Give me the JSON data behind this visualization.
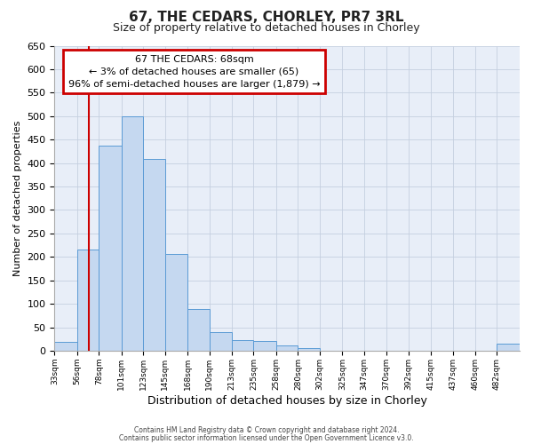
{
  "title": "67, THE CEDARS, CHORLEY, PR7 3RL",
  "subtitle": "Size of property relative to detached houses in Chorley",
  "xlabel": "Distribution of detached houses by size in Chorley",
  "ylabel": "Number of detached properties",
  "bin_labels": [
    "33sqm",
    "56sqm",
    "78sqm",
    "101sqm",
    "123sqm",
    "145sqm",
    "168sqm",
    "190sqm",
    "213sqm",
    "235sqm",
    "258sqm",
    "280sqm",
    "302sqm",
    "325sqm",
    "347sqm",
    "370sqm",
    "392sqm",
    "415sqm",
    "437sqm",
    "460sqm",
    "482sqm"
  ],
  "bar_values": [
    18,
    215,
    438,
    500,
    408,
    207,
    88,
    40,
    22,
    20,
    12,
    5,
    0,
    0,
    0,
    0,
    0,
    0,
    0,
    0,
    15
  ],
  "bar_color": "#c5d8f0",
  "bar_edge_color": "#5b9bd5",
  "ylim": [
    0,
    650
  ],
  "yticks": [
    0,
    50,
    100,
    150,
    200,
    250,
    300,
    350,
    400,
    450,
    500,
    550,
    600,
    650
  ],
  "red_line_x": 68,
  "annotation_title": "67 THE CEDARS: 68sqm",
  "annotation_line1": "← 3% of detached houses are smaller (65)",
  "annotation_line2": "96% of semi-detached houses are larger (1,879) →",
  "annotation_box_color": "#ffffff",
  "annotation_box_edge": "#cc0000",
  "red_line_color": "#cc0000",
  "footer1": "Contains HM Land Registry data © Crown copyright and database right 2024.",
  "footer2": "Contains public sector information licensed under the Open Government Licence v3.0.",
  "bin_edges": [
    33,
    56,
    78,
    101,
    123,
    145,
    168,
    190,
    213,
    235,
    258,
    280,
    302,
    325,
    347,
    370,
    392,
    415,
    437,
    460,
    482,
    505
  ],
  "background_color": "#ffffff",
  "plot_bg_color": "#e8eef8",
  "grid_color": "#c5cfe0",
  "title_fontsize": 11,
  "subtitle_fontsize": 9,
  "ylabel_fontsize": 8,
  "xlabel_fontsize": 9
}
